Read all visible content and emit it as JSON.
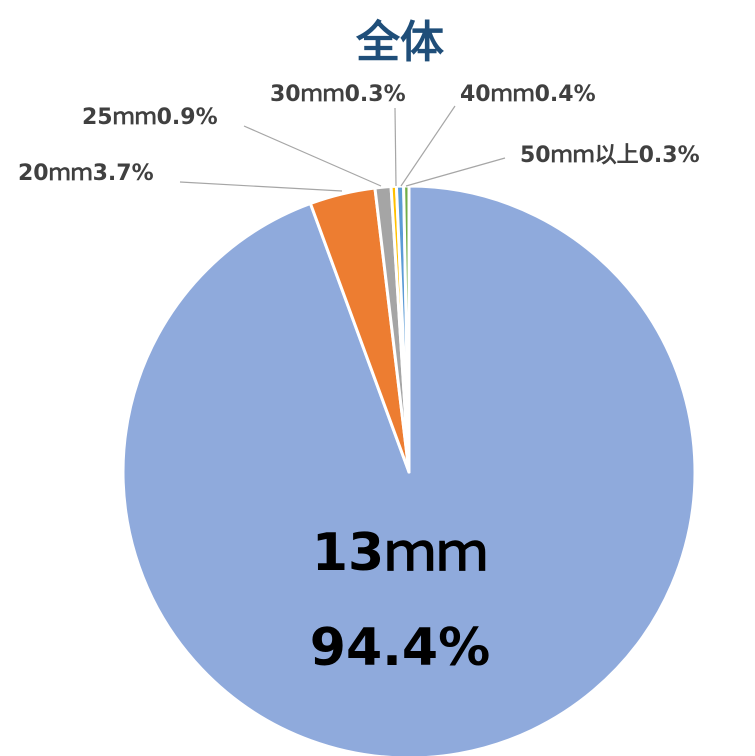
{
  "chart_data": {
    "type": "pie",
    "title": "全体",
    "slices": [
      {
        "label": "13ｍｍ",
        "value": 94.4,
        "value_text": "94.4%",
        "color": "#8faadc"
      },
      {
        "label": "20ｍｍ",
        "value": 3.7,
        "value_text": "3.7%",
        "color": "#ed7d31"
      },
      {
        "label": "25ｍｍ",
        "value": 0.9,
        "value_text": "0.9%",
        "color": "#a5a5a5"
      },
      {
        "label": "30ｍｍ",
        "value": 0.3,
        "value_text": "0.3%",
        "color": "#ffc000"
      },
      {
        "label": "40ｍｍ",
        "value": 0.4,
        "value_text": "0.4%",
        "color": "#5b9bd5"
      },
      {
        "label": "50ｍｍ以上",
        "value": 0.3,
        "value_text": "0.3%",
        "color": "#70ad47"
      }
    ],
    "start_angle_deg": 0,
    "direction": "counterclockwise",
    "colors": {
      "title": "#1f4e79",
      "leader_line": "#a6a6a6",
      "slice_border": "#ffffff"
    }
  }
}
